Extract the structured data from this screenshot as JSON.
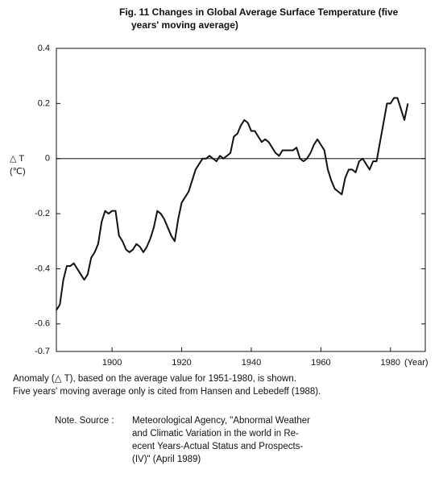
{
  "chart_data": {
    "type": "line",
    "title": [
      "Fig. 11 Changes in Global Average Surface Temperature (five",
      "years' moving average)"
    ],
    "ylabel": [
      "△ T",
      "(℃)"
    ],
    "xlabel": "(Year)",
    "x": [
      1884,
      1885,
      1886,
      1887,
      1888,
      1889,
      1890,
      1891,
      1892,
      1893,
      1894,
      1895,
      1896,
      1897,
      1898,
      1899,
      1900,
      1901,
      1902,
      1903,
      1904,
      1905,
      1906,
      1907,
      1908,
      1909,
      1910,
      1911,
      1912,
      1913,
      1914,
      1915,
      1916,
      1917,
      1918,
      1919,
      1920,
      1921,
      1922,
      1923,
      1924,
      1925,
      1926,
      1927,
      1928,
      1929,
      1930,
      1931,
      1932,
      1933,
      1934,
      1935,
      1936,
      1937,
      1938,
      1939,
      1940,
      1941,
      1942,
      1943,
      1944,
      1945,
      1946,
      1947,
      1948,
      1949,
      1950,
      1951,
      1952,
      1953,
      1954,
      1955,
      1956,
      1957,
      1958,
      1959,
      1960,
      1961,
      1962,
      1963,
      1964,
      1965,
      1966,
      1967,
      1968,
      1969,
      1970,
      1971,
      1972,
      1973,
      1974,
      1975,
      1976,
      1977,
      1978,
      1979,
      1980,
      1981,
      1982,
      1983,
      1984,
      1985
    ],
    "values": [
      -0.55,
      -0.53,
      -0.44,
      -0.39,
      -0.39,
      -0.38,
      -0.4,
      -0.42,
      -0.44,
      -0.42,
      -0.36,
      -0.34,
      -0.31,
      -0.23,
      -0.19,
      -0.2,
      -0.19,
      -0.19,
      -0.28,
      -0.3,
      -0.33,
      -0.34,
      -0.33,
      -0.31,
      -0.32,
      -0.34,
      -0.32,
      -0.29,
      -0.25,
      -0.19,
      -0.2,
      -0.22,
      -0.25,
      -0.28,
      -0.3,
      -0.22,
      -0.16,
      -0.14,
      -0.12,
      -0.08,
      -0.04,
      -0.02,
      0.0,
      0.0,
      0.01,
      0.0,
      -0.01,
      0.01,
      0.0,
      0.01,
      0.02,
      0.08,
      0.09,
      0.12,
      0.14,
      0.13,
      0.1,
      0.1,
      0.08,
      0.06,
      0.07,
      0.06,
      0.04,
      0.02,
      0.01,
      0.03,
      0.03,
      0.03,
      0.03,
      0.04,
      0.0,
      -0.01,
      0.0,
      0.02,
      0.05,
      0.07,
      0.05,
      0.03,
      -0.04,
      -0.08,
      -0.11,
      -0.12,
      -0.13,
      -0.07,
      -0.04,
      -0.04,
      -0.05,
      -0.01,
      0.0,
      -0.02,
      -0.04,
      -0.01,
      -0.01,
      0.06,
      0.13,
      0.2,
      0.2,
      0.22,
      0.22,
      0.18,
      0.14,
      0.2
    ],
    "color": "#111111",
    "xlim": [
      1884,
      1990
    ],
    "xticks": [
      1900,
      1920,
      1940,
      1960,
      1980
    ],
    "ylim": [
      -0.7,
      0.4
    ],
    "yticks": [
      0.4,
      0.2,
      0,
      -0.2,
      -0.4,
      -0.6,
      -0.7
    ],
    "zero_line": true,
    "notes": [
      "Anomaly (△ T), based on the average value for 1951-1980, is shown.",
      "Five years' moving average only is cited from Hansen and Lebedeff (1988)."
    ],
    "source_label": "Note. Source :",
    "source": [
      "Meteorological Agency, \"Abnormal Weather",
      "and Climatic Variation in the world in Re-",
      "ecent Years-Actual Status and Prospects-",
      "(IV)\" (April 1989)"
    ]
  }
}
